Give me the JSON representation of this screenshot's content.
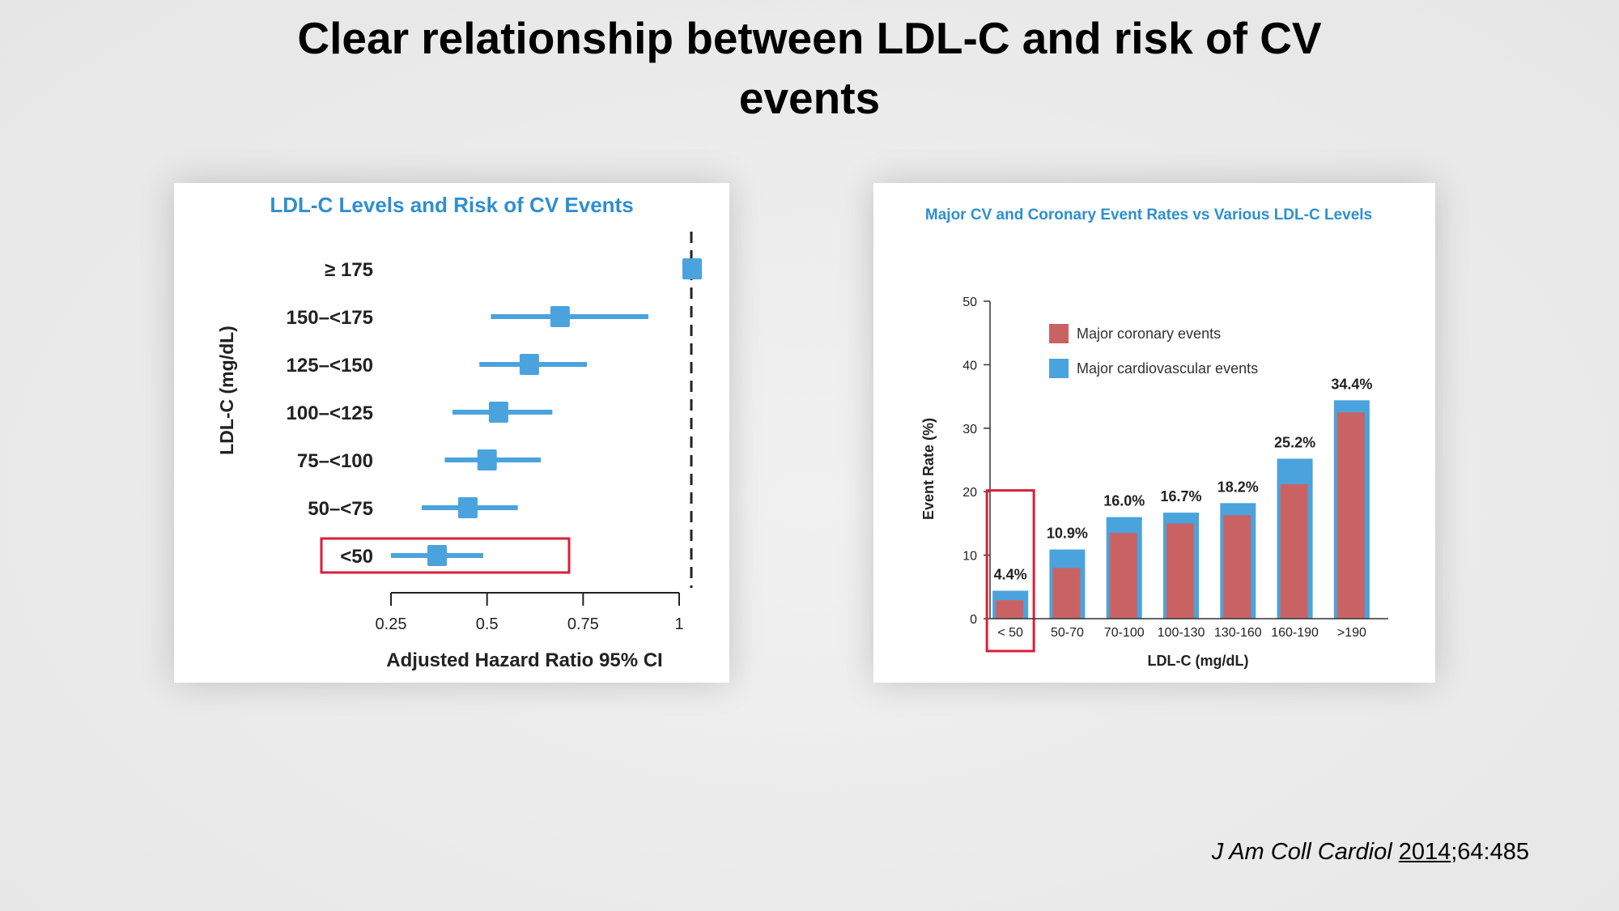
{
  "slide": {
    "title_line1": "Clear relationship between LDL-C and risk of CV",
    "title_line2": "events",
    "citation_journal": "J Am Coll Cardiol",
    "citation_year": "2014",
    "citation_rest": ";64:485"
  },
  "colors": {
    "blue": "#4aa3dc",
    "red_bar": "#c96363",
    "title_blue": "#2f8fcf",
    "highlight": "#d71f3b"
  },
  "chart_data": [
    {
      "type": "scatter",
      "title": "LDL-C Levels and Risk of CV Events",
      "xlabel": "Adjusted Hazard Ratio 95% CI",
      "ylabel": "LDL-C (mg/dL)",
      "xlim": [
        0.25,
        1.0
      ],
      "xticks": [
        "0.25",
        "0.5",
        "0.75",
        "1"
      ],
      "reference_line": 1.0,
      "highlighted_category": "<50",
      "rows": [
        {
          "label": "≥ 175",
          "hr": 1.04,
          "lo": null,
          "hi": null
        },
        {
          "label": "150–<175",
          "hr": 0.69,
          "lo": 0.51,
          "hi": 0.92
        },
        {
          "label": "125–<150",
          "hr": 0.61,
          "lo": 0.48,
          "hi": 0.76
        },
        {
          "label": "100–<125",
          "hr": 0.53,
          "lo": 0.41,
          "hi": 0.67
        },
        {
          "label": "75–<100",
          "hr": 0.5,
          "lo": 0.39,
          "hi": 0.64
        },
        {
          "label": "50–<75",
          "hr": 0.45,
          "lo": 0.33,
          "hi": 0.58
        },
        {
          "label": "<50",
          "hr": 0.37,
          "lo": 0.25,
          "hi": 0.49
        }
      ]
    },
    {
      "type": "bar",
      "title": "Major CV and Coronary Event Rates vs Various LDL-C Levels",
      "xlabel": "LDL-C (mg/dL)",
      "ylabel": "Event Rate (%)",
      "ylim": [
        0,
        50
      ],
      "yticks": [
        "0",
        "10",
        "20",
        "30",
        "40",
        "50"
      ],
      "categories": [
        "< 50",
        "50-70",
        "70-100",
        "100-130",
        "130-160",
        "160-190",
        ">190"
      ],
      "highlighted_category": "< 50",
      "series": [
        {
          "name": "Major coronary events",
          "values": [
            2.9,
            8.0,
            13.5,
            15.0,
            16.3,
            21.2,
            32.5
          ]
        },
        {
          "name": "Major cardiovascular events",
          "values": [
            4.4,
            10.9,
            16.0,
            16.7,
            18.2,
            25.2,
            34.4
          ]
        }
      ],
      "value_labels": [
        "4.4%",
        "10.9%",
        "16.0%",
        "16.7%",
        "18.2%",
        "25.2%",
        "34.4%"
      ]
    }
  ]
}
